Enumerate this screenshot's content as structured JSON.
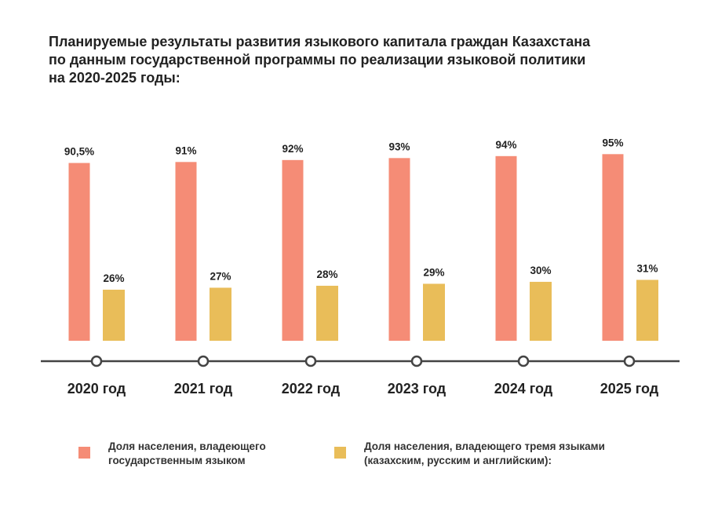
{
  "title_lines": [
    "Планируемые результаты развития языкового капитала граждан Казахстана",
    "по данным государственной программы по реализации языковой политики",
    "на 2020-2025 годы:"
  ],
  "colors": {
    "state_language": "#F58C76",
    "three_languages": "#E9BD59",
    "axis": "#444444"
  },
  "legend": [
    {
      "lines": [
        "Доля населения, владеющего",
        "государственным языком"
      ],
      "color": "#F58C76"
    },
    {
      "lines": [
        "Доля населения, владеющего тремя языками",
        "(казахским, русским и английским):"
      ],
      "color": "#E9BD59"
    }
  ],
  "chart_data": {
    "type": "bar",
    "title": "Планируемые результаты развития языкового капитала граждан Казахстана по данным государственной программы по реализации языковой политики на 2020-2025 годы:",
    "categories": [
      "2020 год",
      "2021 год",
      "2022 год",
      "2023 год",
      "2024 год",
      "2025 год"
    ],
    "series": [
      {
        "name": "Доля населения, владеющего государственным языком",
        "values": [
          90.5,
          91,
          92,
          93,
          94,
          95
        ],
        "labels": [
          "90,5%",
          "91%",
          "92%",
          "93%",
          "94%",
          "95%"
        ]
      },
      {
        "name": "Доля населения, владеющего тремя языками (казахским, русским и английским):",
        "values": [
          26,
          27,
          28,
          29,
          30,
          31
        ],
        "labels": [
          "26%",
          "27%",
          "28%",
          "29%",
          "30%",
          "31%"
        ]
      }
    ],
    "xlabel": "",
    "ylabel": "",
    "grid": false,
    "legend_position": "bottom"
  }
}
